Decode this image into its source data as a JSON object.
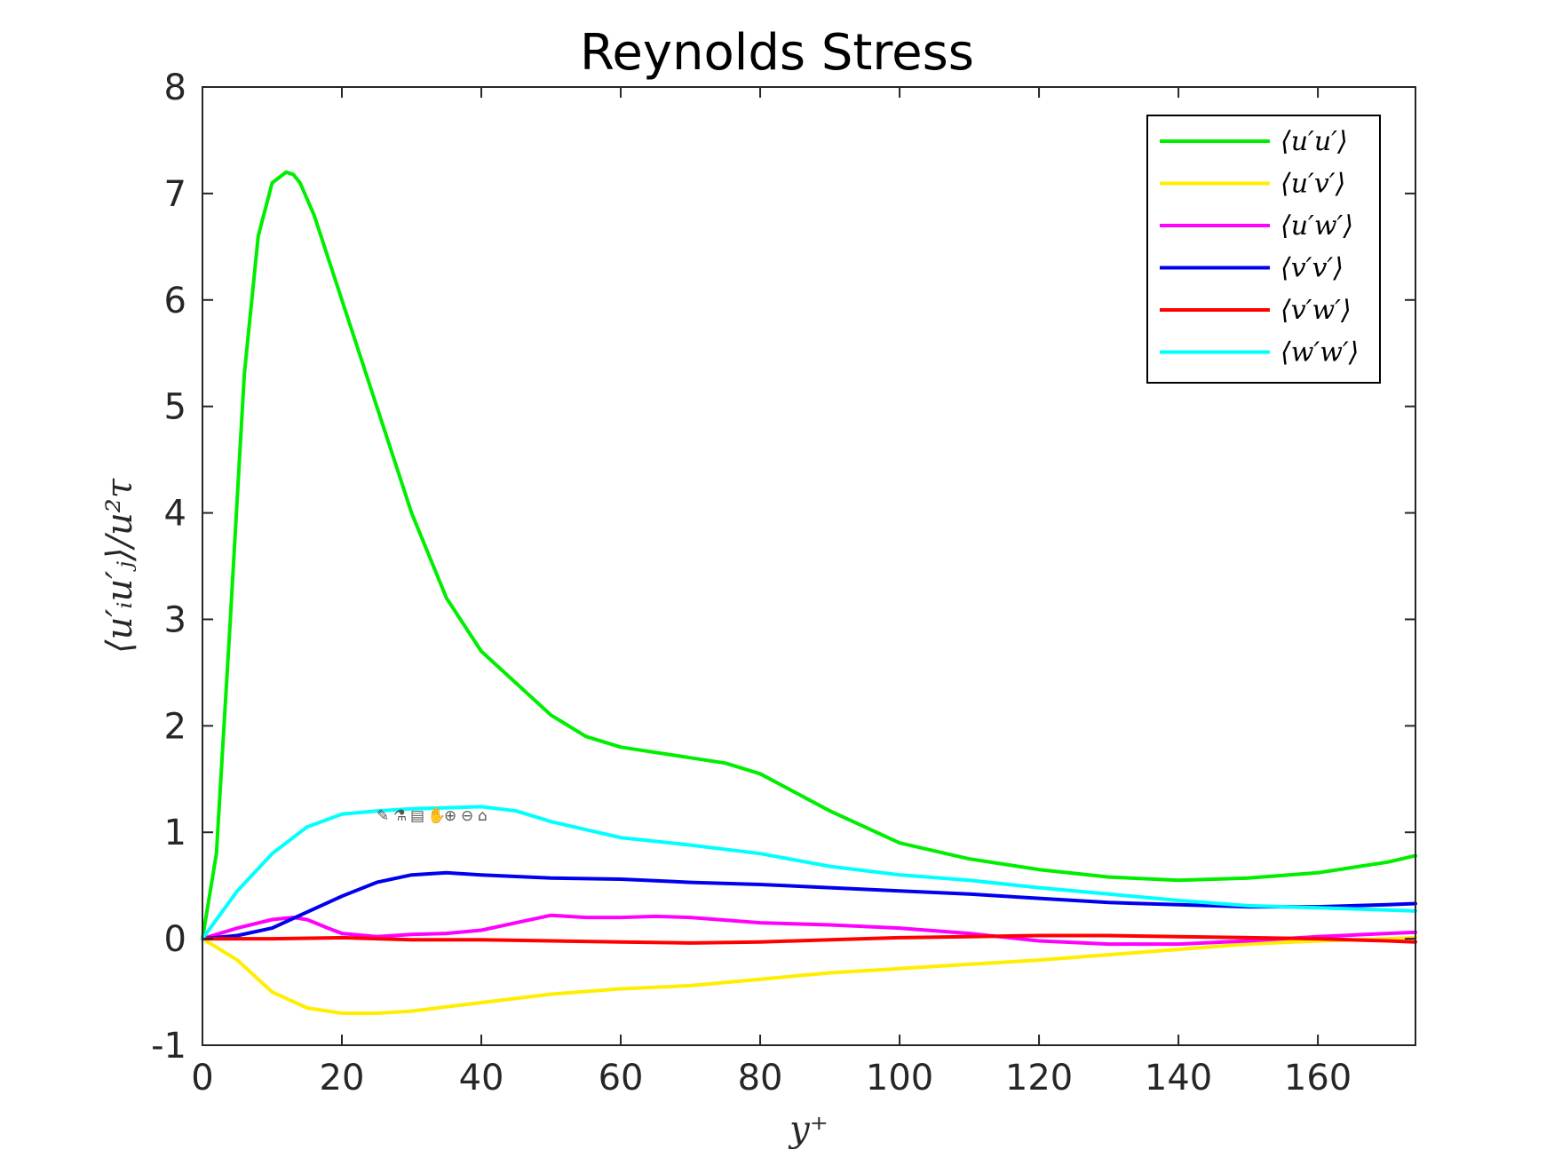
{
  "chart_data": {
    "type": "line",
    "title": "Reynolds Stress",
    "xlabel": "y⁺",
    "ylabel": "⟨u′ᵢu′ⱼ⟩/u²τ",
    "xlim": [
      0,
      174
    ],
    "ylim": [
      -1,
      8
    ],
    "xticks": [
      0,
      20,
      40,
      60,
      80,
      100,
      120,
      140,
      160
    ],
    "yticks": [
      -1,
      0,
      1,
      2,
      3,
      4,
      5,
      6,
      7,
      8
    ],
    "grid": false,
    "legend_position": "top-right",
    "series": [
      {
        "name": "⟨u′u′⟩",
        "color": "#00ee00",
        "x": [
          0,
          2,
          4,
          6,
          8,
          10,
          12,
          13,
          14,
          16,
          18,
          20,
          25,
          30,
          35,
          40,
          45,
          50,
          55,
          60,
          65,
          70,
          75,
          80,
          90,
          100,
          110,
          120,
          130,
          140,
          150,
          160,
          170,
          174
        ],
        "y": [
          0,
          0.8,
          3.0,
          5.3,
          6.6,
          7.1,
          7.2,
          7.18,
          7.1,
          6.8,
          6.4,
          6.0,
          5.0,
          4.0,
          3.2,
          2.7,
          2.4,
          2.1,
          1.9,
          1.8,
          1.75,
          1.7,
          1.65,
          1.55,
          1.2,
          0.9,
          0.75,
          0.65,
          0.58,
          0.55,
          0.57,
          0.62,
          0.72,
          0.78
        ]
      },
      {
        "name": "⟨u′v′⟩",
        "color": "#ffee00",
        "x": [
          0,
          5,
          10,
          15,
          20,
          25,
          30,
          40,
          50,
          60,
          70,
          80,
          90,
          100,
          110,
          120,
          130,
          140,
          150,
          160,
          170,
          174
        ],
        "y": [
          0,
          -0.2,
          -0.5,
          -0.65,
          -0.7,
          -0.7,
          -0.68,
          -0.6,
          -0.52,
          -0.47,
          -0.44,
          -0.38,
          -0.32,
          -0.28,
          -0.24,
          -0.2,
          -0.15,
          -0.1,
          -0.05,
          -0.02,
          0.0,
          0.01
        ]
      },
      {
        "name": "⟨u′w′⟩",
        "color": "#ff00ff",
        "x": [
          0,
          5,
          10,
          13,
          15,
          18,
          20,
          25,
          30,
          35,
          40,
          45,
          50,
          55,
          60,
          65,
          70,
          80,
          90,
          100,
          110,
          120,
          130,
          140,
          150,
          160,
          170,
          174
        ],
        "y": [
          0,
          0.1,
          0.18,
          0.2,
          0.18,
          0.1,
          0.05,
          0.02,
          0.04,
          0.05,
          0.08,
          0.15,
          0.22,
          0.2,
          0.2,
          0.21,
          0.2,
          0.15,
          0.13,
          0.1,
          0.05,
          -0.02,
          -0.05,
          -0.05,
          -0.02,
          0.02,
          0.05,
          0.06
        ]
      },
      {
        "name": "⟨v′v′⟩",
        "color": "#0000ee",
        "x": [
          0,
          5,
          10,
          15,
          20,
          25,
          30,
          35,
          40,
          50,
          60,
          70,
          80,
          90,
          100,
          110,
          120,
          130,
          140,
          150,
          160,
          170,
          174
        ],
        "y": [
          0,
          0.03,
          0.1,
          0.25,
          0.4,
          0.53,
          0.6,
          0.62,
          0.6,
          0.57,
          0.56,
          0.53,
          0.51,
          0.48,
          0.45,
          0.42,
          0.38,
          0.34,
          0.32,
          0.3,
          0.3,
          0.32,
          0.33
        ]
      },
      {
        "name": "⟨v′w′⟩",
        "color": "#ff0000",
        "x": [
          0,
          10,
          20,
          30,
          40,
          50,
          60,
          70,
          80,
          90,
          100,
          110,
          120,
          130,
          140,
          150,
          160,
          170,
          174
        ],
        "y": [
          0,
          0,
          0.01,
          -0.01,
          -0.01,
          -0.02,
          -0.03,
          -0.04,
          -0.03,
          -0.01,
          0.01,
          0.02,
          0.03,
          0.03,
          0.02,
          0.01,
          0.0,
          -0.02,
          -0.03
        ]
      },
      {
        "name": "⟨w′w′⟩",
        "color": "#00ffff",
        "x": [
          0,
          5,
          10,
          15,
          20,
          25,
          30,
          35,
          40,
          45,
          50,
          60,
          70,
          80,
          90,
          100,
          110,
          120,
          130,
          140,
          150,
          160,
          170,
          174
        ],
        "y": [
          0,
          0.45,
          0.8,
          1.05,
          1.17,
          1.2,
          1.22,
          1.23,
          1.24,
          1.2,
          1.1,
          0.95,
          0.88,
          0.8,
          0.68,
          0.6,
          0.55,
          0.48,
          0.42,
          0.36,
          0.31,
          0.29,
          0.27,
          0.26
        ]
      }
    ]
  },
  "toolbar": {
    "icons": [
      "brush-icon",
      "datatip-icon",
      "datatip2-icon",
      "pan-icon",
      "zoom-in-icon",
      "zoom-out-icon",
      "home-icon"
    ],
    "glyphs": [
      "✎",
      "⚗",
      "▤",
      "✋",
      "⊕",
      "⊖",
      "⌂"
    ]
  }
}
